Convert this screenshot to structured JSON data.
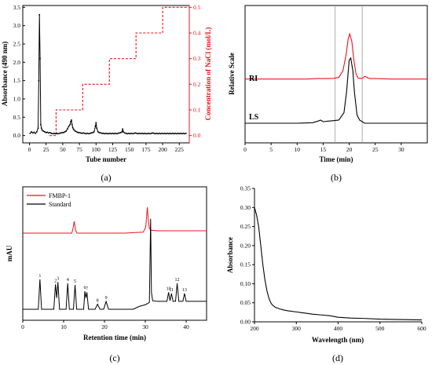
{
  "chart_data": [
    {
      "id": "a",
      "type": "line",
      "panel_label": "(a)",
      "xlabel": "Tube number",
      "ylabel": "Absorbance (490 nm)",
      "ylabel_right": "Concentration of NaCl (mol/L)",
      "xlim": [
        -10,
        240
      ],
      "ylim": [
        -0.2,
        3.55
      ],
      "ylim_right": [
        -0.0286,
        0.5071
      ],
      "xticks": [
        0,
        25,
        50,
        75,
        100,
        125,
        150,
        175,
        200,
        225
      ],
      "yticks": [
        0.0,
        0.5,
        1.0,
        1.5,
        2.0,
        2.5,
        3.0,
        3.5
      ],
      "yticks_right": [
        0.0,
        0.1,
        0.2,
        0.3,
        0.4,
        0.5
      ],
      "series": [
        {
          "role": "absorbance",
          "color": "#000000",
          "style": "solid",
          "markers": true,
          "x": [
            1,
            3,
            5,
            7,
            9,
            11,
            13,
            14,
            15,
            16,
            17,
            18,
            19,
            21,
            23,
            25,
            27,
            29,
            31,
            33,
            35,
            37,
            39,
            41,
            43,
            45,
            47,
            49,
            51,
            53,
            55,
            57,
            59,
            61,
            62,
            63,
            64,
            65,
            66,
            67,
            69,
            71,
            73,
            75,
            77,
            79,
            81,
            83,
            85,
            87,
            89,
            91,
            93,
            95,
            97,
            99,
            100,
            101,
            103,
            105,
            107,
            109,
            111,
            113,
            115,
            117,
            119,
            121,
            123,
            125,
            127,
            129,
            131,
            133,
            135,
            137,
            139,
            140,
            141,
            143,
            145,
            147,
            149,
            151,
            153,
            155,
            157,
            159,
            161,
            163,
            165,
            167,
            169,
            171,
            173,
            175,
            177,
            179,
            181,
            183,
            185,
            187,
            189,
            191,
            193,
            195,
            197,
            199,
            201,
            203,
            205,
            207,
            209,
            211,
            213,
            215,
            217,
            219,
            221,
            223,
            225,
            227,
            229,
            231,
            233,
            235
          ],
          "y": [
            0.06,
            0.1,
            0.07,
            0.09,
            0.06,
            0.1,
            0.2,
            1.5,
            3.3,
            2.1,
            0.3,
            0.2,
            0.15,
            0.12,
            0.1,
            0.08,
            0.09,
            0.07,
            0.08,
            0.06,
            0.05,
            0.06,
            0.05,
            0.06,
            0.05,
            0.06,
            0.07,
            0.08,
            0.08,
            0.1,
            0.12,
            0.18,
            0.25,
            0.3,
            0.38,
            0.42,
            0.3,
            0.22,
            0.18,
            0.15,
            0.12,
            0.1,
            0.08,
            0.08,
            0.07,
            0.06,
            0.07,
            0.06,
            0.05,
            0.06,
            0.05,
            0.06,
            0.07,
            0.08,
            0.1,
            0.25,
            0.35,
            0.2,
            0.1,
            0.08,
            0.07,
            0.06,
            0.06,
            0.05,
            0.06,
            0.05,
            0.05,
            0.06,
            0.05,
            0.06,
            0.05,
            0.06,
            0.05,
            0.06,
            0.07,
            0.08,
            0.1,
            0.18,
            0.1,
            0.07,
            0.06,
            0.05,
            0.06,
            0.05,
            0.06,
            0.05,
            0.06,
            0.07,
            0.06,
            0.05,
            0.06,
            0.05,
            0.06,
            0.05,
            0.06,
            0.05,
            0.05,
            0.06,
            0.05,
            0.06,
            0.07,
            0.06,
            0.05,
            0.06,
            0.05,
            0.06,
            0.05,
            0.06,
            0.05,
            0.06,
            0.05,
            0.06,
            0.05,
            0.06,
            0.05,
            0.06,
            0.05,
            0.06,
            0.05,
            0.06,
            0.05,
            0.06,
            0.05,
            0.06,
            0.05,
            0.06
          ]
        },
        {
          "role": "NaCl gradient",
          "color": "#e8141c",
          "style": "dashed",
          "axis": "right",
          "x": [
            30,
            40,
            40,
            40,
            40,
            80,
            80,
            120,
            120,
            160,
            160,
            200,
            200,
            236
          ],
          "y": [
            0,
            0,
            0.05,
            0.05,
            0.1,
            0.1,
            0.2,
            0.2,
            0.3,
            0.3,
            0.4,
            0.4,
            0.5,
            0.5
          ]
        }
      ]
    },
    {
      "id": "b",
      "type": "line",
      "panel_label": "(b)",
      "xlabel": "Time (min)",
      "ylabel": "Relative Scale",
      "xlim": [
        0,
        35
      ],
      "xticks": [
        0,
        5,
        10,
        15,
        20,
        25,
        30
      ],
      "yticks": [],
      "annotations": [
        "RI",
        "LS"
      ],
      "vlines": [
        17.3,
        22.5
      ],
      "series": [
        {
          "name": "RI",
          "color": "#e8141c",
          "x": [
            0,
            8,
            12,
            14,
            15,
            16,
            17,
            18,
            18.8,
            19.4,
            19.8,
            20.1,
            20.5,
            20.9,
            21.3,
            21.7,
            22.2,
            22.6,
            23.0,
            23.3,
            23.6,
            24.0,
            25,
            28,
            30,
            35
          ],
          "y": [
            0.42,
            0.42,
            0.42,
            0.425,
            0.425,
            0.425,
            0.427,
            0.435,
            0.5,
            0.65,
            0.8,
            0.85,
            0.78,
            0.6,
            0.47,
            0.43,
            0.425,
            0.43,
            0.445,
            0.44,
            0.43,
            0.425,
            0.425,
            0.42,
            0.42,
            0.42
          ]
        },
        {
          "name": "LS",
          "color": "#000000",
          "x": [
            0,
            5,
            10,
            13,
            14,
            14.5,
            15,
            16,
            17,
            18,
            19,
            19.5,
            20,
            20.3,
            20.7,
            21,
            21.5,
            22,
            23,
            25,
            30,
            35
          ],
          "y": [
            0.0,
            0.0,
            0.0,
            0.005,
            0.02,
            0.03,
            0.015,
            0.02,
            0.025,
            0.03,
            0.1,
            0.3,
            0.6,
            0.62,
            0.5,
            0.3,
            0.08,
            0.03,
            0.0,
            0.0,
            0.0,
            0.0
          ]
        }
      ]
    },
    {
      "id": "c",
      "type": "line",
      "panel_label": "(c)",
      "xlabel": "Retention time (min)",
      "ylabel": "mAU",
      "xlim": [
        0,
        45
      ],
      "xticks": [
        0,
        10,
        20,
        30,
        40
      ],
      "yticks": [],
      "legend": {
        "position": "top-left"
      },
      "peak_labels": [
        {
          "label": "1",
          "x": 4.2
        },
        {
          "label": "2",
          "x": 8.0
        },
        {
          "label": "3",
          "x": 8.6
        },
        {
          "label": "4",
          "x": 11.0
        },
        {
          "label": "5",
          "x": 12.8
        },
        {
          "label": "6",
          "x": 15.2
        },
        {
          "label": "7",
          "x": 15.7
        },
        {
          "label": "8",
          "x": 18.3
        },
        {
          "label": "9",
          "x": 20.4
        },
        {
          "label": "10",
          "x": 35.7
        },
        {
          "label": "11",
          "x": 36.4
        },
        {
          "label": "12",
          "x": 37.8
        },
        {
          "label": "13",
          "x": 39.6
        }
      ],
      "series": [
        {
          "name": "FMBP-1",
          "color": "#e8141c",
          "x": [
            0,
            10,
            12.0,
            12.3,
            12.6,
            12.9,
            13.3,
            20,
            25,
            28,
            29.5,
            30.1,
            30.5,
            30.7,
            31.0,
            31.4,
            33,
            45
          ],
          "y": [
            0,
            0,
            0,
            0.4,
            1,
            0.25,
            0,
            0,
            0,
            0.06,
            0.08,
            0.5,
            2.2,
            1.2,
            0.4,
            0.25,
            0.2,
            0.2
          ]
        },
        {
          "name": "Standard",
          "color": "#000000",
          "x": [
            0,
            3.8,
            4.2,
            4.6,
            7.6,
            8.0,
            8.3,
            8.6,
            9.0,
            10.6,
            11.0,
            11.4,
            12.4,
            12.8,
            13.2,
            14.9,
            15.2,
            15.45,
            15.7,
            16.1,
            17.7,
            18.3,
            18.9,
            19.8,
            20.4,
            21.0,
            22,
            27,
            28.5,
            30,
            31.0,
            31.3,
            31.5,
            31.8,
            33,
            35.3,
            35.7,
            36.05,
            36.4,
            36.8,
            37.4,
            37.8,
            38.2,
            39.2,
            39.6,
            40.0,
            45
          ],
          "y": [
            0,
            0,
            0.53,
            0,
            0,
            0.44,
            0.2,
            0.48,
            0,
            0,
            0.46,
            0,
            0,
            0.43,
            0,
            0,
            0.32,
            0.2,
            0.3,
            0,
            0,
            0.09,
            0,
            0,
            0.14,
            0,
            0,
            0,
            0.05,
            0.08,
            0.12,
            1.6,
            0.3,
            0.15,
            0.14,
            0.14,
            0.3,
            0.15,
            0.28,
            0.14,
            0.14,
            0.46,
            0.14,
            0.14,
            0.28,
            0.14,
            0.14
          ]
        }
      ]
    },
    {
      "id": "d",
      "type": "line",
      "panel_label": "(d)",
      "xlabel": "Wavelength (nm)",
      "ylabel": "Absorbance",
      "xlim": [
        200,
        600
      ],
      "ylim": [
        0,
        0.35
      ],
      "xticks": [
        200,
        300,
        400,
        500,
        600
      ],
      "yticks": [
        0.0,
        0.05,
        0.1,
        0.15,
        0.2,
        0.25,
        0.3,
        0.35
      ],
      "series": [
        {
          "color": "#000000",
          "x": [
            200,
            205,
            210,
            215,
            220,
            225,
            230,
            235,
            240,
            245,
            250,
            260,
            270,
            280,
            300,
            320,
            340,
            360,
            380,
            400,
            430,
            460,
            500,
            550,
            600
          ],
          "y": [
            0.3,
            0.28,
            0.25,
            0.2,
            0.15,
            0.11,
            0.08,
            0.06,
            0.048,
            0.042,
            0.038,
            0.034,
            0.031,
            0.029,
            0.026,
            0.023,
            0.02,
            0.018,
            0.016,
            0.012,
            0.01,
            0.009,
            0.007,
            0.006,
            0.005
          ]
        }
      ]
    }
  ]
}
